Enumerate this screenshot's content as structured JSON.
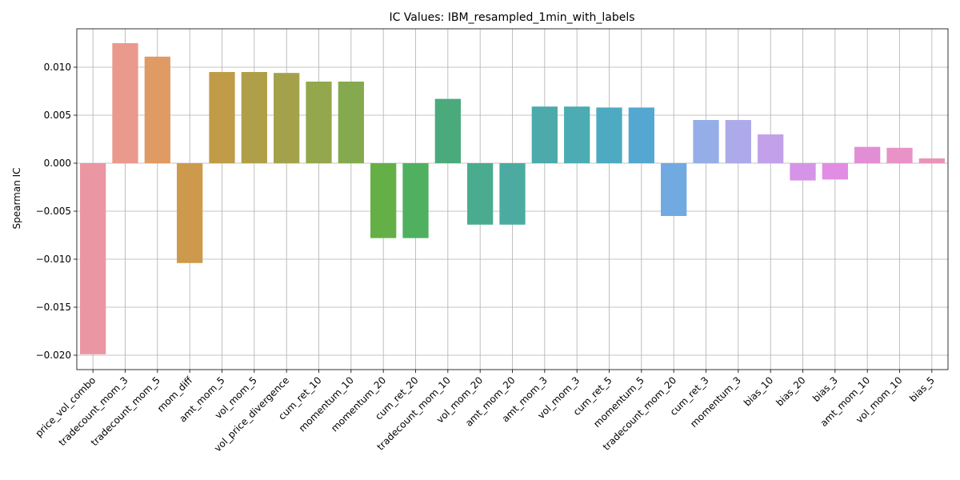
{
  "chart_data": {
    "type": "bar",
    "title": "IC Values: IBM_resampled_1min_with_labels",
    "xlabel": "",
    "ylabel": "Spearman IC",
    "ylim": [
      -0.0215,
      0.014
    ],
    "yticks": [
      -0.02,
      -0.015,
      -0.01,
      -0.005,
      0.0,
      0.005,
      0.01
    ],
    "ytick_labels": [
      "−0.020",
      "−0.015",
      "−0.010",
      "−0.005",
      "0.000",
      "0.005",
      "0.010"
    ],
    "grid": true,
    "categories": [
      "price_vol_combo",
      "tradecount_mom_3",
      "tradecount_mom_5",
      "mom_diff",
      "amt_mom_5",
      "vol_mom_5",
      "vol_price_divergence",
      "cum_ret_10",
      "momentum_10",
      "momentum_20",
      "cum_ret_20",
      "tradecount_mom_10",
      "vol_mom_20",
      "amt_mom_20",
      "amt_mom_3",
      "vol_mom_3",
      "cum_ret_5",
      "momentum_5",
      "tradecount_mom_20",
      "cum_ret_3",
      "momentum_3",
      "bias_10",
      "bias_20",
      "bias_3",
      "amt_mom_10",
      "vol_mom_10",
      "bias_5"
    ],
    "values": [
      -0.0199,
      0.0125,
      0.0111,
      -0.0104,
      0.0095,
      0.0095,
      0.0094,
      0.0085,
      0.0085,
      -0.0078,
      -0.0078,
      0.0067,
      -0.0064,
      -0.0064,
      0.0059,
      0.0059,
      0.0058,
      0.0058,
      -0.0055,
      0.0045,
      0.0045,
      0.003,
      -0.0018,
      -0.0017,
      0.0017,
      0.0016,
      0.0005
    ],
    "colors": [
      "#ea96a3",
      "#e99a8c",
      "#e09a63",
      "#cd9a4d",
      "#c09b48",
      "#b09f49",
      "#a3a24b",
      "#94a74c",
      "#85a94e",
      "#64b046",
      "#4fb05f",
      "#4aaa7b",
      "#4bab8f",
      "#4baba1",
      "#4caaab",
      "#4cabb3",
      "#4eaac0",
      "#54a7d0",
      "#71a9e1",
      "#95aee8",
      "#adaaea",
      "#c3a1ea",
      "#d594e7",
      "#e18de4",
      "#e28ed5",
      "#e892c8",
      "#e994b8"
    ]
  }
}
